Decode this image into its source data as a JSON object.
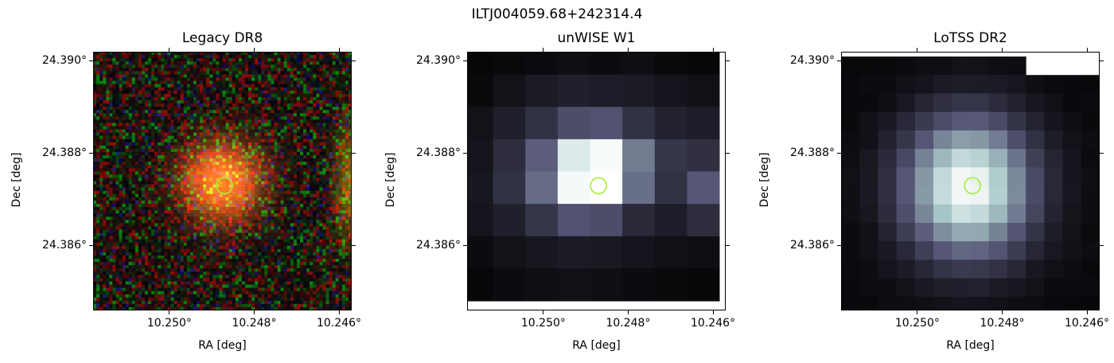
{
  "figure": {
    "suptitle": "ILTJ004059.68+242314.4"
  },
  "chart_data": [
    {
      "type": "heatmap",
      "title": "Legacy DR8",
      "xlabel": "RA [deg]",
      "ylabel": "Dec [deg]",
      "xticks": [
        "10.250°",
        "10.248°",
        "10.246°"
      ],
      "yticks": [
        "24.390°",
        "24.388°",
        "24.386°"
      ],
      "xlim": [
        10.2518,
        10.2457
      ],
      "ylim": [
        24.3846,
        24.3902
      ],
      "xtick_values": [
        10.25,
        10.248,
        10.246
      ],
      "ytick_values": [
        24.39,
        24.388,
        24.386
      ],
      "colormap": "rgb-noise",
      "source_marker": {
        "ra": 10.2487,
        "dec": 24.3873,
        "color": "#a8ee38"
      },
      "grid": false
    },
    {
      "type": "heatmap",
      "title": "unWISE W1",
      "xlabel": "RA [deg]",
      "ylabel": "Dec [deg]",
      "xticks": [
        "10.250°",
        "10.248°",
        "10.246°"
      ],
      "yticks": [
        "24.390°",
        "24.388°",
        "24.386°"
      ],
      "xlim": [
        10.2518,
        10.2457
      ],
      "ylim": [
        24.3846,
        24.3902
      ],
      "xtick_values": [
        10.25,
        10.248,
        10.246
      ],
      "ytick_values": [
        24.39,
        24.388,
        24.386
      ],
      "colormap": "bone",
      "source_marker": {
        "ra": 10.2487,
        "dec": 24.3873,
        "color": "#a8ee38"
      },
      "grid": false
    },
    {
      "type": "heatmap",
      "title": "LoTSS DR2",
      "xlabel": "RA [deg]",
      "ylabel": "Dec [deg]",
      "xticks": [
        "10.250°",
        "10.248°",
        "10.246°"
      ],
      "yticks": [
        "24.390°",
        "24.388°",
        "24.386°"
      ],
      "xlim": [
        10.2518,
        10.2457
      ],
      "ylim": [
        24.3846,
        24.3902
      ],
      "xtick_values": [
        10.25,
        10.248,
        10.246
      ],
      "ytick_values": [
        24.39,
        24.388,
        24.386
      ],
      "colormap": "bone",
      "source_marker": {
        "ra": 10.2487,
        "dec": 24.3873,
        "color": "#a8ee38"
      },
      "grid": false
    }
  ]
}
